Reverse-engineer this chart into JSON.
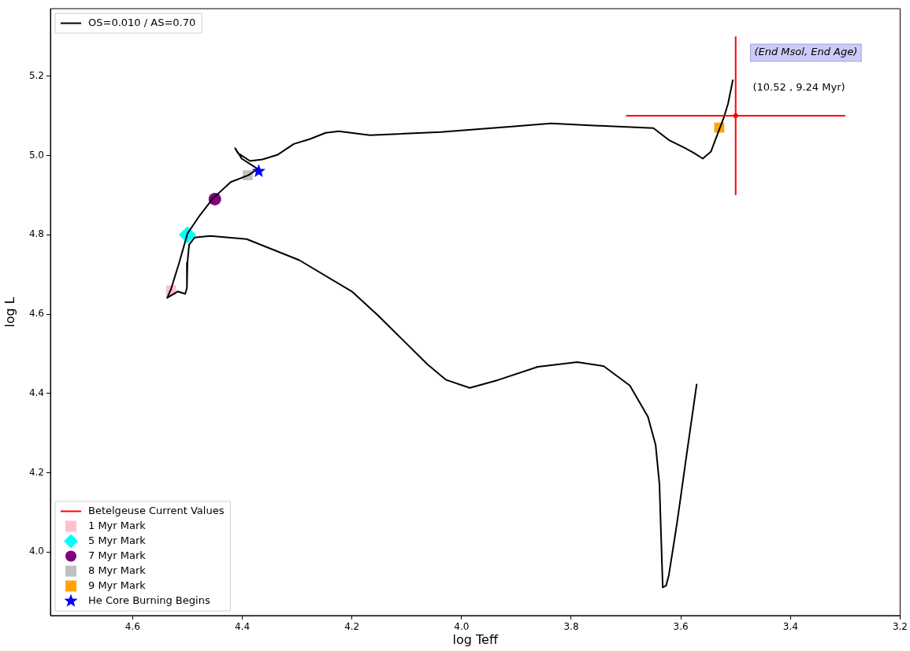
{
  "chart_data": {
    "type": "line",
    "xlabel": "log Teff",
    "ylabel": "log L",
    "xlim": [
      4.75,
      3.2
    ],
    "ylim": [
      3.84,
      5.37
    ],
    "xticks": [
      4.6,
      4.4,
      4.2,
      {
        "value": 4,
        "label": "4.0"
      },
      3.8,
      3.6,
      3.4,
      3.2
    ],
    "yticks": [
      {
        "value": 4,
        "label": "4.0"
      },
      4.2,
      4.4,
      4.6,
      4.8,
      {
        "value": 5,
        "label": "5.0"
      },
      5.2
    ],
    "legend": "bottom left",
    "annotations": [
      "(End Msol, End Age)",
      "(10.52 , 9.24 Myr)"
    ],
    "series": [
      {
        "name": "OS=0.010 / AS=0.70",
        "color": "#000000",
        "marker": "none",
        "x": [
          3.571,
          3.589,
          3.607,
          3.622,
          3.627,
          3.633,
          3.636,
          3.639,
          3.646,
          3.66,
          3.693,
          3.741,
          3.789,
          3.861,
          3.933,
          3.985,
          4.028,
          4.062,
          4.124,
          4.152,
          4.2,
          4.296,
          4.392,
          4.458,
          4.487,
          4.497,
          4.5,
          4.501,
          4.504,
          4.518,
          4.537,
          4.53,
          4.515,
          4.5,
          4.478,
          4.454,
          4.421,
          4.389,
          4.372,
          4.401,
          4.413,
          4.408,
          4.386,
          4.363,
          4.335,
          4.306,
          4.277,
          4.248,
          4.224,
          4.167,
          4.038,
          3.908,
          3.837,
          3.751,
          3.65,
          3.622,
          3.593,
          3.576,
          3.56,
          3.545,
          3.531,
          3.521,
          3.514,
          3.505
        ],
        "values": [
          4.424,
          4.25,
          4.073,
          3.941,
          3.915,
          3.911,
          4.039,
          4.171,
          4.27,
          4.341,
          4.42,
          4.469,
          4.479,
          4.467,
          4.434,
          4.414,
          4.434,
          4.473,
          4.558,
          4.596,
          4.657,
          4.736,
          4.789,
          4.797,
          4.793,
          4.775,
          4.73,
          4.666,
          4.651,
          4.657,
          4.641,
          4.663,
          4.73,
          4.803,
          4.848,
          4.891,
          4.933,
          4.95,
          4.966,
          4.992,
          5.018,
          5.006,
          4.986,
          4.99,
          5.002,
          5.029,
          5.041,
          5.057,
          5.061,
          5.051,
          5.059,
          5.073,
          5.081,
          5.075,
          5.069,
          5.039,
          5.019,
          5.006,
          4.992,
          5.01,
          5.061,
          5.098,
          5.13,
          5.191
        ]
      },
      {
        "name": "Betelgeuse Current Values",
        "type": "scatter",
        "color": "#ff0000",
        "x": [
          3.5
        ],
        "values": [
          5.1
        ],
        "errors": [
          0.2
        ],
        "xerrors": [
          0.2
        ]
      },
      {
        "name": "1 Myr Mark",
        "type": "scatter",
        "color": "#ffc0cb",
        "marker": "square",
        "x": [
          4.53
        ],
        "values": [
          4.66
        ]
      },
      {
        "name": "5 Myr Mark",
        "type": "scatter",
        "color": "#00ffff",
        "marker": "diamond",
        "x": [
          4.5
        ],
        "values": [
          4.8
        ]
      },
      {
        "name": "7 Myr Mark",
        "type": "scatter",
        "color": "#800080",
        "marker": "circle",
        "x": [
          4.45
        ],
        "values": [
          4.89
        ]
      },
      {
        "name": "8 Myr Mark",
        "type": "scatter",
        "color": "#c0c0c0",
        "marker": "square",
        "x": [
          4.39
        ],
        "values": [
          4.95
        ]
      },
      {
        "name": "9 Myr Mark",
        "type": "scatter",
        "color": "#ffa500",
        "marker": "square",
        "x": [
          3.53
        ],
        "values": [
          5.07
        ]
      },
      {
        "name": "He Core Burning Begins",
        "type": "scatter",
        "color": "#0000ff",
        "marker": "star",
        "x": [
          4.37
        ],
        "values": [
          4.96
        ]
      }
    ]
  }
}
